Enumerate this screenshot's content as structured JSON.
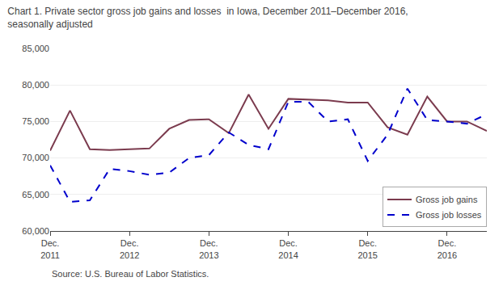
{
  "chart_data": {
    "type": "line",
    "title": "Chart 1. Private sector gross job gains and losses  in Iowa, December 2011–December 2016,",
    "subtitle": "seasonally adjusted",
    "annotations": [
      "Source: U.S. Bureau of Labor Statistics."
    ],
    "categories": [
      "Dec.\n2011",
      null,
      null,
      null,
      "Dec.\n2012",
      null,
      null,
      null,
      "Dec.\n2013",
      null,
      null,
      null,
      "Dec.\n2014",
      null,
      null,
      null,
      "Dec.\n2015",
      null,
      null,
      null,
      "Dec.\n2016",
      null,
      null
    ],
    "series": [
      {
        "name": "Gross job gains",
        "color": "#7b3b4e",
        "line_style": "solid",
        "values": [
          71000,
          76500,
          71200,
          71100,
          71200,
          71300,
          74000,
          75200,
          75300,
          73400,
          78700,
          74000,
          78100,
          78000,
          77900,
          77600,
          77600,
          74200,
          73200,
          78400,
          75000,
          75000,
          73700
        ]
      },
      {
        "name": "Gross job losses",
        "color": "#0000cc",
        "line_style": "dashed",
        "values": [
          69000,
          64000,
          64200,
          68500,
          68200,
          67700,
          68000,
          70000,
          70400,
          73500,
          71800,
          71200,
          77700,
          77700,
          75000,
          75300,
          69600,
          73200,
          79500,
          75200,
          75000,
          74700,
          76000
        ]
      }
    ],
    "ylim": [
      60000,
      85000
    ],
    "yticks": [
      {
        "value": 60000,
        "label": "60,000"
      },
      {
        "value": 65000,
        "label": "65,000"
      },
      {
        "value": 70000,
        "label": "70,000"
      },
      {
        "value": 75000,
        "label": "75,000"
      },
      {
        "value": 80000,
        "label": "80,000"
      },
      {
        "value": 85000,
        "label": "85,000"
      }
    ],
    "grid": true,
    "legend": "lower right"
  }
}
